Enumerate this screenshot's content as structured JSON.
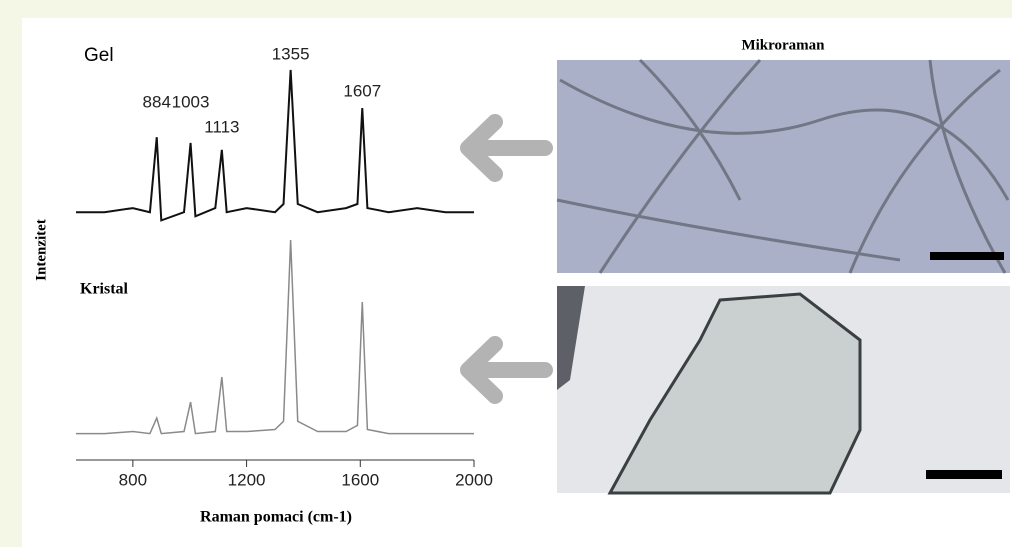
{
  "chart_data": {
    "type": "line",
    "ylabel": "Intenzitet",
    "xlabel": "Raman pomaci (cm-1)",
    "image_title": "Mikroraman",
    "x": [
      600,
      700,
      800,
      860,
      884,
      900,
      980,
      1003,
      1020,
      1090,
      1113,
      1130,
      1200,
      1300,
      1330,
      1355,
      1380,
      1450,
      1550,
      1590,
      1607,
      1625,
      1700,
      1800,
      1900,
      2000
    ],
    "series": [
      {
        "name": "Gel",
        "color": "#111111",
        "values": [
          58,
          58,
          59,
          58,
          76.3,
          56,
          58,
          74.9,
          57,
          59,
          73.2,
          58,
          59,
          58,
          60,
          92.7,
          60,
          58,
          59,
          60,
          83.4,
          59,
          58,
          59,
          58,
          58
        ]
      },
      {
        "name": "Kristal",
        "color": "#8a8a8a",
        "values": [
          4,
          4,
          4.5,
          4,
          7.8,
          4,
          4.5,
          11.7,
          4,
          4.5,
          17.8,
          4.5,
          4.5,
          5,
          7,
          51.2,
          7,
          4.5,
          4.5,
          6,
          36.1,
          5,
          4,
          4,
          4,
          4
        ]
      }
    ],
    "peak_labels": [
      884,
      1003,
      1113,
      1355,
      1607
    ],
    "xlim": [
      600,
      2000
    ],
    "xticks": [
      800,
      1200,
      1600,
      2000
    ],
    "ylim": [
      0,
      100
    ]
  }
}
